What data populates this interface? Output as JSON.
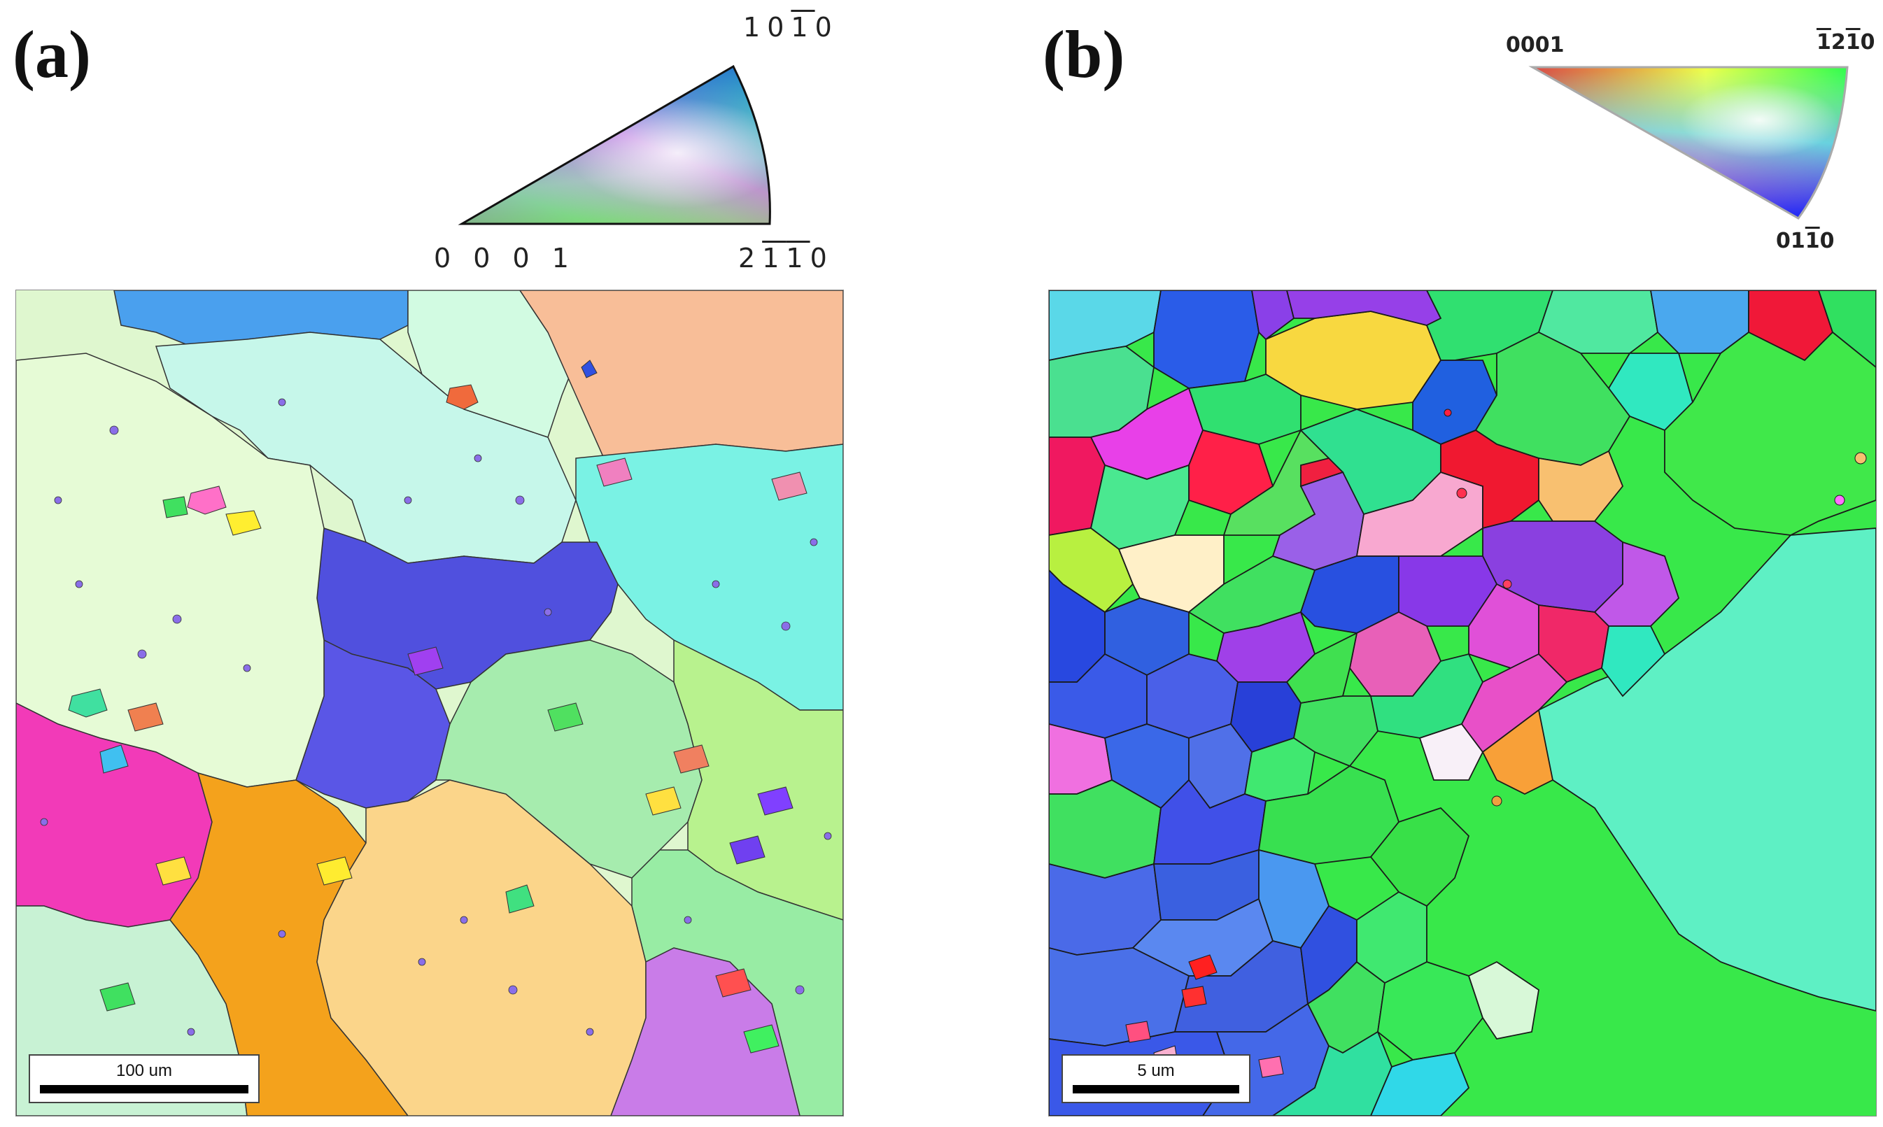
{
  "panels": {
    "a": {
      "label": "(a)",
      "key": {
        "corner_top": [
          "1",
          "0",
          "1",
          "0"
        ],
        "corner_top_bar_index": 2,
        "corner_left": "0 0 0 1",
        "corner_right": [
          "2",
          "1",
          "1",
          "0"
        ],
        "corner_right_bar_indices": [
          1,
          2
        ]
      },
      "scale_bar": "100 um"
    },
    "b": {
      "label": "(b)",
      "key": {
        "corner_left": "0001",
        "corner_right": [
          "1",
          "2",
          "1",
          "0"
        ],
        "corner_right_bar_indices": [
          0,
          2
        ],
        "corner_bottom": [
          "0",
          "1",
          "1",
          "0"
        ],
        "corner_bottom_bar_indices": [
          2
        ]
      },
      "scale_bar": "5 um"
    }
  },
  "colors": {
    "red_0001": "#ff0000",
    "green_2110": "#00ff00",
    "blue_1010": "#0000ff",
    "grain_boundary": "#1a1a1a"
  }
}
